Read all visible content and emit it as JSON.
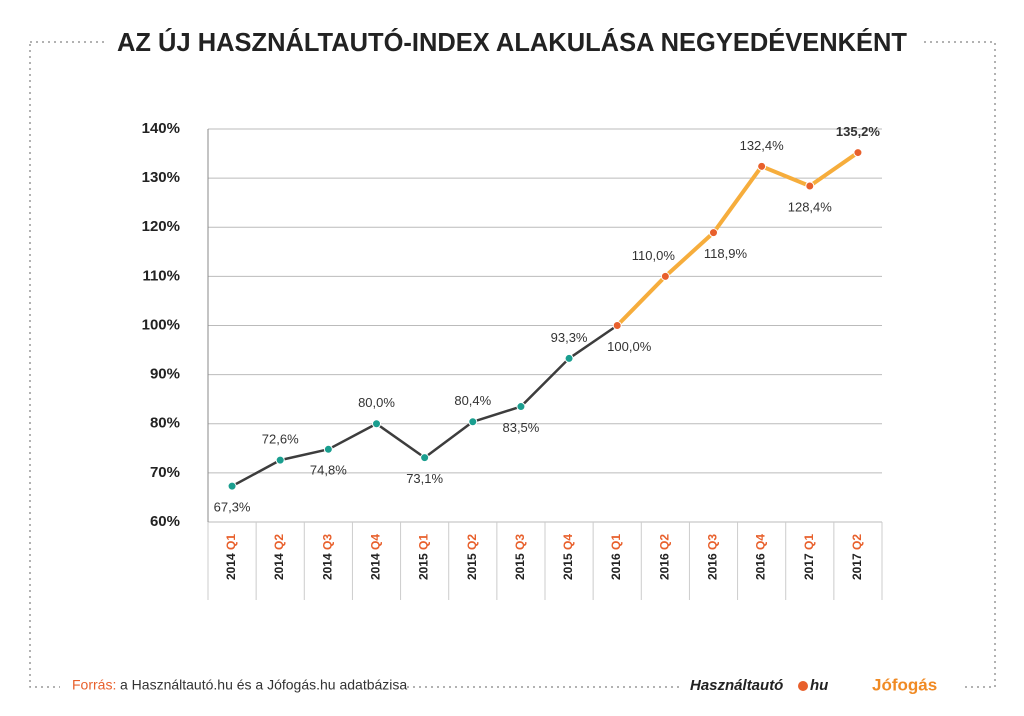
{
  "chart_data": {
    "type": "line",
    "title": "AZ ÚJ HASZNÁLTAUTÓ-INDEX ALAKULÁSA NEGYEDÉVENKÉNT",
    "categories": [
      "2014 Q1",
      "2014 Q2",
      "2014 Q3",
      "2014 Q4",
      "2015 Q1",
      "2015 Q2",
      "2015 Q3",
      "2015 Q4",
      "2016 Q1",
      "2016 Q2",
      "2016 Q3",
      "2016 Q4",
      "2017 Q1",
      "2017 Q2"
    ],
    "values": [
      67.3,
      72.6,
      74.8,
      80.0,
      73.1,
      80.4,
      83.5,
      93.3,
      100.0,
      110.0,
      118.9,
      132.4,
      128.4,
      135.2
    ],
    "value_labels": [
      "67,3%",
      "72,6%",
      "74,8%",
      "80,0%",
      "73,1%",
      "80,4%",
      "83,5%",
      "93,3%",
      "100,0%",
      "110,0%",
      "118,9%",
      "132,4%",
      "128,4%",
      "135,2%"
    ],
    "color": "#3d3d3d",
    "marker_color": "#1a9e8f",
    "highlight_from": "2016 Q1",
    "highlight_color": "#f6ad3c",
    "highlight_marker_color": "#e8602c",
    "ylim": [
      60,
      140
    ],
    "yticks": [
      {
        "value": 60,
        "label": "60%"
      },
      {
        "value": 70,
        "label": "70%"
      },
      {
        "value": 80,
        "label": "80%"
      },
      {
        "value": 90,
        "label": "90%"
      },
      {
        "value": 100,
        "label": "100%"
      },
      {
        "value": 110,
        "label": "110%"
      },
      {
        "value": 120,
        "label": "120%"
      },
      {
        "value": 130,
        "label": "130%"
      },
      {
        "value": 140,
        "label": "140%"
      }
    ],
    "grid": true
  },
  "footer": {
    "source_label": "Forrás:",
    "source": "a Használtautó.hu és a Jófogás.hu adatbázisa",
    "logo_1": "Használtautó",
    "logo_1_suffix": "hu",
    "logo_2": "Jófogás"
  }
}
